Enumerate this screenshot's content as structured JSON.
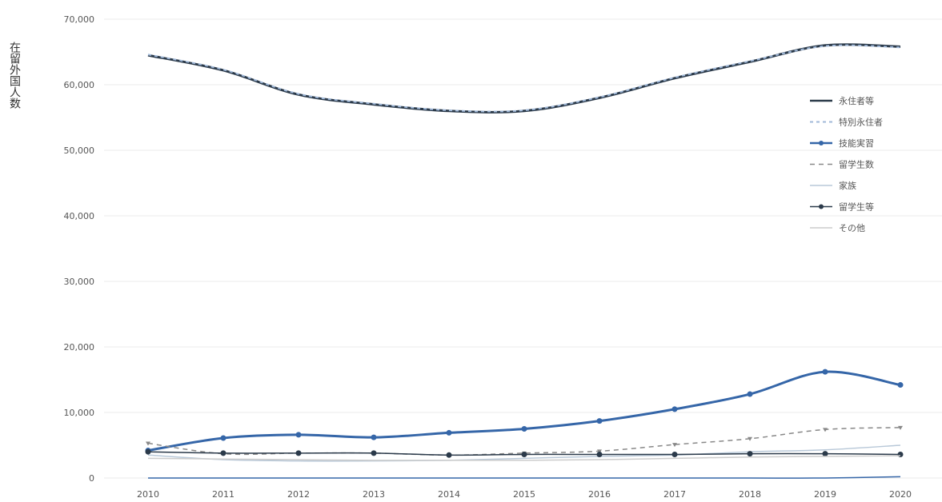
{
  "chart_data": {
    "type": "line",
    "ylabel": "在留外国人数",
    "ylim": [
      0,
      70000
    ],
    "y_ticks": [
      "0",
      "10,000",
      "20,000",
      "30,000",
      "40,000",
      "50,000",
      "60,000",
      "70,000"
    ],
    "y_tick_values": [
      0,
      10000,
      20000,
      30000,
      40000,
      50000,
      60000,
      70000
    ],
    "x": [
      "2010",
      "2011",
      "2012",
      "2013",
      "2014",
      "2015",
      "2016",
      "2017",
      "2018",
      "2019",
      "2020"
    ],
    "grid": true,
    "legend_position": "right",
    "series": [
      {
        "name": "永住者等",
        "color": "#2b3a4a",
        "dash": "none",
        "marker": "none",
        "width": 3,
        "values": [
          64500,
          62200,
          58500,
          57000,
          56000,
          56000,
          58000,
          61000,
          63500,
          66000,
          65800
        ]
      },
      {
        "name": "特別永住者",
        "color": "#a0b8d8",
        "dash": "4,4",
        "marker": "none",
        "width": 2,
        "values": [
          64600,
          62300,
          58600,
          57100,
          56100,
          56100,
          58100,
          61100,
          63600,
          65900,
          65700
        ]
      },
      {
        "name": "技能実習",
        "color": "#3566a8",
        "dash": "none",
        "marker": "dot",
        "width": 3,
        "values": [
          4200,
          6100,
          6600,
          6200,
          6900,
          7500,
          8700,
          10500,
          12800,
          16200,
          14200
        ]
      },
      {
        "name": "留学生数",
        "color": "#888888",
        "dash": "6,5",
        "marker": "tri",
        "width": 1.5,
        "values": [
          5300,
          3700,
          3800,
          3800,
          3500,
          3800,
          4100,
          5100,
          6000,
          7400,
          7700
        ]
      },
      {
        "name": "家族",
        "color": "#b8c8d8",
        "dash": "none",
        "marker": "none",
        "width": 1.5,
        "values": [
          3500,
          2800,
          2600,
          2600,
          2700,
          3000,
          3300,
          3500,
          4000,
          4300,
          5000
        ]
      },
      {
        "name": "留学生等",
        "color": "#2b3a4a",
        "dash": "none",
        "marker": "dot",
        "width": 1.5,
        "values": [
          4000,
          3800,
          3800,
          3800,
          3500,
          3600,
          3600,
          3600,
          3700,
          3700,
          3600
        ]
      },
      {
        "name": "その他",
        "color": "#cccccc",
        "dash": "none",
        "marker": "none",
        "width": 1.5,
        "values": [
          3000,
          2900,
          2800,
          2700,
          2700,
          2700,
          2800,
          3000,
          3200,
          3300,
          3400
        ]
      },
      {
        "name": "",
        "color": "#3566a8",
        "dash": "none",
        "marker": "none",
        "width": 1.5,
        "values": [
          0,
          0,
          0,
          0,
          0,
          0,
          0,
          0,
          0,
          0,
          200
        ]
      }
    ]
  }
}
